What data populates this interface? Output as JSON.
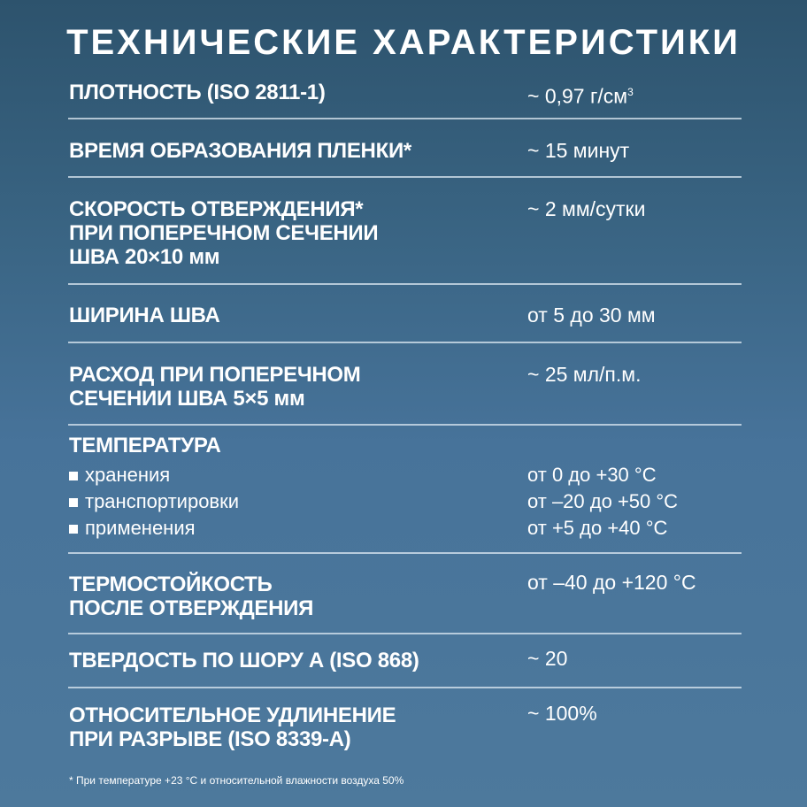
{
  "title": "ТЕХНИЧЕСКИЕ ХАРАКТЕРИСТИКИ",
  "rows": [
    {
      "label": [
        "ПЛОТНОСТЬ (ISO 2811-1)"
      ],
      "value": "~ 0,97 г/см",
      "value_sup": "3"
    },
    {
      "label": [
        "ВРЕМЯ ОБРАЗОВАНИЯ ПЛЕНКИ*"
      ],
      "value": "~ 15 минут"
    },
    {
      "label": [
        "СКОРОСТЬ ОТВЕРЖДЕНИЯ*",
        "ПРИ ПОПЕРЕЧНОМ СЕЧЕНИИ",
        "ШВА 20×10 мм"
      ],
      "value": "~ 2 мм/сутки"
    },
    {
      "label": [
        "ШИРИНА ШВА"
      ],
      "value": "от 5 до 30 мм"
    },
    {
      "label": [
        "РАСХОД ПРИ ПОПЕРЕЧНОМ",
        "СЕЧЕНИИ ШВА 5×5 мм"
      ],
      "value": "~ 25 мл/п.м."
    },
    {
      "label": [
        "ТЕМПЕРАТУРА"
      ],
      "items": [
        {
          "label": "хранения",
          "value": "от 0 до +30 °C"
        },
        {
          "label": "транспортировки",
          "value": "от –20 до +50 °C"
        },
        {
          "label": "применения",
          "value": "от +5 до +40 °C"
        }
      ]
    },
    {
      "label": [
        "ТЕРМОСТОЙКОСТЬ",
        "ПОСЛЕ ОТВЕРЖДЕНИЯ"
      ],
      "value": "от –40 до +120 °C"
    },
    {
      "label": [
        "ТВЕРДОСТЬ ПО ШОРУ А (ISO 868)"
      ],
      "value": "~ 20"
    },
    {
      "label": [
        "ОТНОСИТЕЛЬНОЕ УДЛИНЕНИЕ",
        "ПРИ РАЗРЫВЕ (ISO 8339-A)"
      ],
      "value": "~ 100%"
    }
  ],
  "footnote": "* При температуре +23 °C и относительной влажности воздуха 50%"
}
